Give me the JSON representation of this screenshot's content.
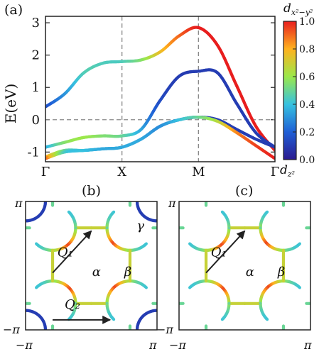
{
  "panel_labels": {
    "a": "(a)",
    "b": "(b)",
    "c": "(c)"
  },
  "chart_data": [
    {
      "type": "line",
      "panel": "(a)",
      "ylabel": "E(eV)",
      "ylim": [
        -1.3,
        3.2
      ],
      "yticks": [
        -1,
        0,
        1,
        2,
        3
      ],
      "xticks": [
        "Γ",
        "X",
        "M",
        "Γ"
      ],
      "xtick_positions": [
        0,
        1,
        2,
        3
      ],
      "fermi_level": 0,
      "grid": "dashed verticals at X and M, dashed horizontal at E=0",
      "colormap": {
        "label_top": "d_{x²−y²}",
        "label_bottom": "d_{z²}",
        "ticks": [
          "0.0",
          "0.2",
          "0.4",
          "0.6",
          "0.8",
          "1.0"
        ],
        "range": [
          0,
          1
        ],
        "colors": [
          "#2b1a8f",
          "#1f5fd6",
          "#36c2e0",
          "#9be84a",
          "#ffb21e",
          "#e81e1e"
        ]
      },
      "series": [
        {
          "x": [
            0,
            0.25,
            0.5,
            0.75,
            1,
            1.25,
            1.5,
            1.75,
            2,
            2.25,
            2.5,
            2.75,
            3
          ],
          "y": [
            0.4,
            0.8,
            1.45,
            1.75,
            1.8,
            1.85,
            2.1,
            2.6,
            2.85,
            2.3,
            1.05,
            -0.2,
            -0.95
          ],
          "weight": [
            0.15,
            0.3,
            0.45,
            0.45,
            0.45,
            0.55,
            0.75,
            0.9,
            1.0,
            1.0,
            1.0,
            1.0,
            1.0
          ]
        },
        {
          "x": [
            0,
            0.25,
            0.5,
            0.75,
            1,
            1.25,
            1.5,
            1.75,
            2,
            2.25,
            2.5,
            2.75,
            3
          ],
          "y": [
            -0.85,
            -0.7,
            -0.55,
            -0.5,
            -0.5,
            -0.3,
            0.6,
            1.35,
            1.5,
            1.45,
            0.5,
            -0.4,
            -0.85
          ],
          "weight": [
            0.35,
            0.55,
            0.6,
            0.55,
            0.5,
            0.35,
            0.15,
            0.1,
            0.1,
            0.1,
            0.1,
            0.1,
            0.1
          ]
        },
        {
          "x": [
            0,
            0.25,
            0.5,
            0.75,
            1,
            1.25,
            1.5,
            1.75,
            2,
            2.25,
            2.5,
            2.75,
            3
          ],
          "y": [
            -1.15,
            -0.95,
            -0.95,
            -0.9,
            -0.85,
            -0.6,
            -0.2,
            0.0,
            0.08,
            0.0,
            -0.3,
            -0.6,
            -0.85
          ],
          "weight": [
            0.85,
            0.5,
            0.4,
            0.35,
            0.35,
            0.2,
            0.1,
            0.1,
            0.1,
            0.1,
            0.1,
            0.1,
            0.1
          ]
        },
        {
          "x": [
            0,
            0.25,
            0.5,
            0.75,
            1,
            1.25,
            1.5,
            1.75,
            2,
            2.25,
            2.5,
            2.75,
            3
          ],
          "y": [
            -1.2,
            -1.0,
            -0.95,
            -0.9,
            -0.85,
            -0.6,
            -0.2,
            0.0,
            0.08,
            -0.05,
            -0.4,
            -0.8,
            -1.2
          ],
          "weight": [
            0.95,
            0.45,
            0.4,
            0.35,
            0.35,
            0.35,
            0.3,
            0.4,
            0.5,
            0.65,
            0.85,
            0.95,
            1.0
          ]
        }
      ]
    },
    {
      "type": "fermi-surface",
      "panel": "(b)",
      "axis_ticks": {
        "x_min": "−π",
        "x_max": "π",
        "y_min": "−π",
        "y_max": "π"
      },
      "labels": [
        "Q₁",
        "Q₂",
        "α",
        "β",
        "γ"
      ],
      "vectors": [
        {
          "name": "Q₁",
          "from": [
            -1.85,
            -0.35
          ],
          "to": [
            0.0,
            1.7
          ]
        },
        {
          "name": "Q₂",
          "from": [
            -1.85,
            -2.65
          ],
          "to": [
            0.9,
            -2.65
          ]
        }
      ]
    },
    {
      "type": "fermi-surface",
      "panel": "(c)",
      "axis_ticks": {
        "x_min": "−π",
        "x_max": "π",
        "y_min": "−π",
        "y_max": "π"
      },
      "labels": [
        "Q₁",
        "α",
        "β"
      ],
      "vectors": [
        {
          "name": "Q₁",
          "from": [
            -1.85,
            -0.35
          ],
          "to": [
            0.0,
            1.7
          ]
        }
      ]
    }
  ]
}
